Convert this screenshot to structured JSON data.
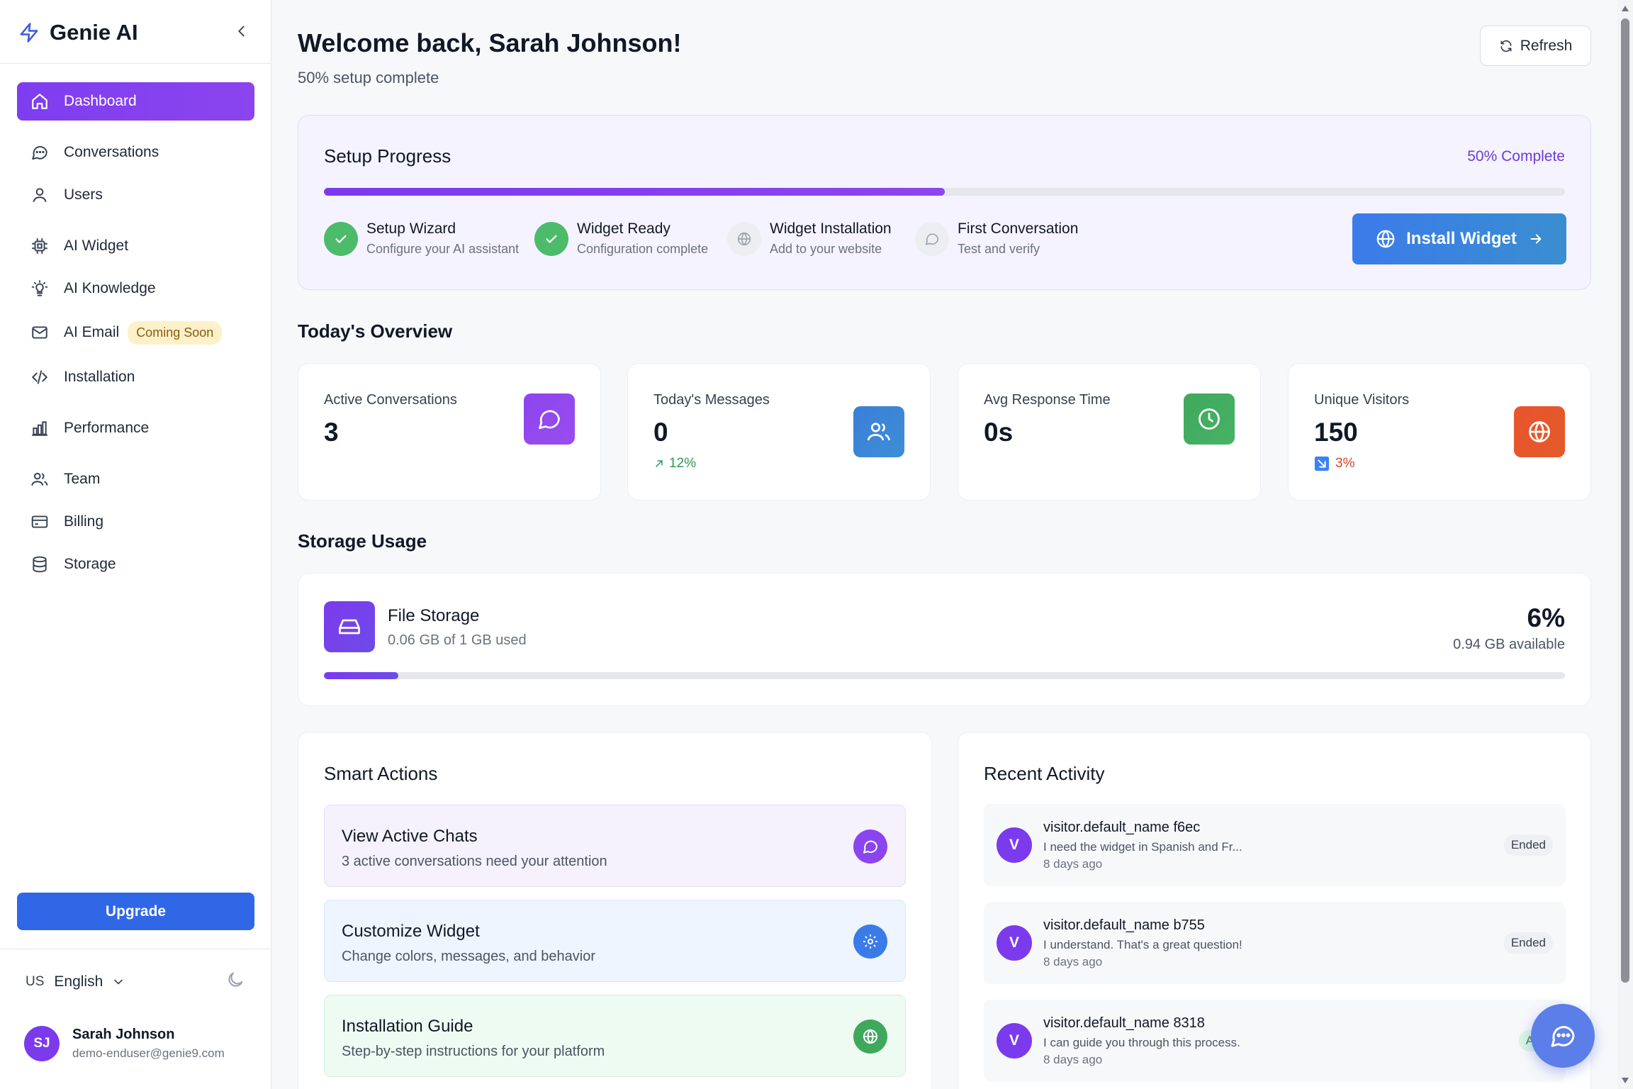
{
  "app": {
    "name": "Genie AI"
  },
  "sidebar": {
    "items": [
      {
        "label": "Dashboard",
        "icon": "home-icon",
        "active": true
      },
      {
        "label": "Conversations",
        "icon": "message-circle-icon"
      },
      {
        "label": "Users",
        "icon": "user-icon"
      },
      {
        "label": "AI Widget",
        "icon": "cpu-icon"
      },
      {
        "label": "AI Knowledge",
        "icon": "lightbulb-icon"
      },
      {
        "label": "AI Email",
        "icon": "mail-icon",
        "badge": "Coming Soon"
      },
      {
        "label": "Installation",
        "icon": "code-icon"
      },
      {
        "label": "Performance",
        "icon": "bar-chart-icon"
      },
      {
        "label": "Team",
        "icon": "users-icon"
      },
      {
        "label": "Billing",
        "icon": "credit-card-icon"
      },
      {
        "label": "Storage",
        "icon": "database-icon"
      }
    ],
    "upgrade_label": "Upgrade",
    "language": {
      "code": "US",
      "label": "English"
    },
    "user": {
      "initials": "SJ",
      "name": "Sarah Johnson",
      "email": "demo-enduser@genie9.com"
    }
  },
  "header": {
    "title": "Welcome back, Sarah Johnson!",
    "subtitle": "50% setup complete",
    "refresh_label": "Refresh"
  },
  "setup": {
    "title": "Setup Progress",
    "percent_label": "50% Complete",
    "progress": 0.5,
    "steps": [
      {
        "title": "Setup Wizard",
        "desc": "Configure your AI assistant",
        "done": true
      },
      {
        "title": "Widget Ready",
        "desc": "Configuration complete",
        "done": true
      },
      {
        "title": "Widget Installation",
        "desc": "Add to your website",
        "done": false
      },
      {
        "title": "First Conversation",
        "desc": "Test and verify",
        "done": false
      }
    ],
    "install_label": "Install Widget"
  },
  "overview": {
    "title": "Today's Overview",
    "stats": [
      {
        "label": "Active Conversations",
        "value": "3",
        "trend": "",
        "icon": "message-circle-icon",
        "color": "#8b45ee"
      },
      {
        "label": "Today's Messages",
        "value": "0",
        "trend": "12%",
        "trend_dir": "up",
        "icon": "users-icon",
        "color": "#3a7fd8"
      },
      {
        "label": "Avg Response Time",
        "value": "0s",
        "trend": "",
        "icon": "clock-icon",
        "color": "#3fa85c"
      },
      {
        "label": "Unique Visitors",
        "value": "150",
        "trend": "3%",
        "trend_dir": "down",
        "icon": "globe-icon",
        "color": "#e8542e"
      }
    ]
  },
  "storage": {
    "title": "Storage Usage",
    "name": "File Storage",
    "used": "0.06 GB of 1 GB used",
    "percent": "6%",
    "fraction": 0.06,
    "available": "0.94 GB available"
  },
  "actions": {
    "title": "Smart Actions",
    "items": [
      {
        "title": "View Active Chats",
        "desc": "3 active conversations need your attention",
        "icon": "message-circle-icon",
        "color": "#8b45ee",
        "bg": "#f5f2fe"
      },
      {
        "title": "Customize Widget",
        "desc": "Change colors, messages, and behavior",
        "icon": "gear-icon",
        "color": "#3b7be8",
        "bg": "#eef5fe"
      },
      {
        "title": "Installation Guide",
        "desc": "Step-by-step instructions for your platform",
        "icon": "globe-icon",
        "color": "#3fa85c",
        "bg": "#eefbf2"
      }
    ]
  },
  "activity": {
    "title": "Recent Activity",
    "items": [
      {
        "initial": "V",
        "name": "visitor.default_name f6ec",
        "message": "I need the widget in Spanish and Fr...",
        "time": "8 days ago",
        "status": "Ended"
      },
      {
        "initial": "V",
        "name": "visitor.default_name b755",
        "message": "I understand. That's a great question!",
        "time": "8 days ago",
        "status": "Ended"
      },
      {
        "initial": "V",
        "name": "visitor.default_name 8318",
        "message": "I can guide you through this process.",
        "time": "8 days ago",
        "status": "Acti"
      }
    ]
  }
}
